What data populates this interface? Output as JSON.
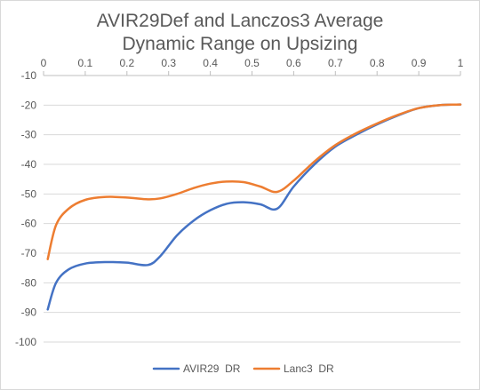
{
  "chart_data": {
    "type": "line",
    "title_line1": "AVIR29Def and Lanczos3 Average",
    "title_line2": "Dynamic Range on Upsizing",
    "xlabel": "",
    "ylabel": "",
    "xlim": [
      0,
      1
    ],
    "ylim": [
      -100,
      -10
    ],
    "x_ticks": [
      "0",
      "0.1",
      "0.2",
      "0.3",
      "0.4",
      "0.5",
      "0.6",
      "0.7",
      "0.8",
      "0.9",
      "1"
    ],
    "y_ticks": [
      "-10",
      "-20",
      "-30",
      "-40",
      "-50",
      "-60",
      "-70",
      "-80",
      "-90",
      "-100"
    ],
    "grid": "horizontal",
    "legend_position": "bottom",
    "series": [
      {
        "name": "AVIR29  DR",
        "color": "#4472c4",
        "x": [
          0.01,
          0.03,
          0.06,
          0.1,
          0.15,
          0.2,
          0.25,
          0.28,
          0.32,
          0.36,
          0.4,
          0.44,
          0.48,
          0.52,
          0.56,
          0.6,
          0.65,
          0.7,
          0.75,
          0.8,
          0.85,
          0.9,
          0.95,
          1.0
        ],
        "y": [
          -89,
          -80,
          -75.5,
          -73.5,
          -73,
          -73.2,
          -74,
          -71,
          -64,
          -59,
          -55.5,
          -53.3,
          -52.8,
          -53.5,
          -55,
          -47.5,
          -40,
          -34,
          -30,
          -26.5,
          -23.5,
          -21,
          -20,
          -19.8
        ]
      },
      {
        "name": "Lanc3  DR",
        "color": "#ed7d31",
        "x": [
          0.01,
          0.03,
          0.06,
          0.1,
          0.15,
          0.2,
          0.25,
          0.28,
          0.32,
          0.36,
          0.4,
          0.44,
          0.48,
          0.52,
          0.56,
          0.6,
          0.65,
          0.7,
          0.75,
          0.8,
          0.85,
          0.9,
          0.95,
          1.0
        ],
        "y": [
          -72,
          -60.5,
          -55,
          -52,
          -51,
          -51.2,
          -51.8,
          -51.5,
          -50,
          -48,
          -46.5,
          -45.8,
          -46,
          -47.5,
          -49.3,
          -45.5,
          -39,
          -33.5,
          -29.5,
          -26.2,
          -23.3,
          -21,
          -20,
          -19.8
        ]
      }
    ]
  }
}
